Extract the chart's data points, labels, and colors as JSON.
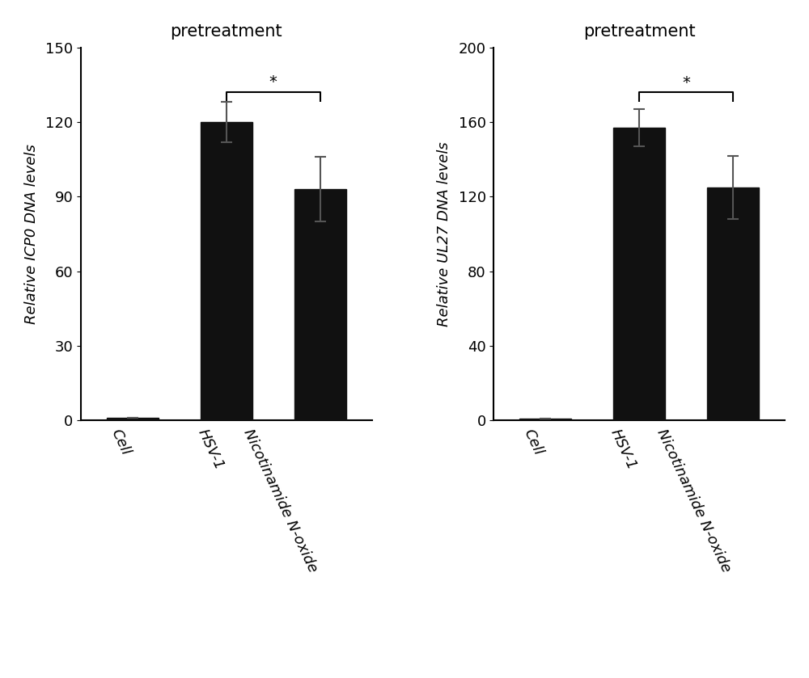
{
  "chart1": {
    "title": "pretreatment",
    "ylabel": "Relative ICP0 DNA levels",
    "categories": [
      "Cell",
      "HSV-1",
      "Nicotinamide N-oxide"
    ],
    "values": [
      1,
      120,
      93
    ],
    "errors": [
      0,
      8,
      13
    ],
    "ylim": [
      0,
      150
    ],
    "yticks": [
      0,
      30,
      60,
      90,
      120,
      150
    ],
    "bar_color": "#111111",
    "bar_width": 0.55,
    "sig_bar_x1": 1,
    "sig_bar_x2": 2,
    "sig_bar_y": 132,
    "sig_bar_drop": 4,
    "sig_star": "*"
  },
  "chart2": {
    "title": "pretreatment",
    "ylabel": "Relative UL27 DNA levels",
    "categories": [
      "Cell",
      "HSV-1",
      "Nicotinamide N-oxide"
    ],
    "values": [
      1,
      157,
      125
    ],
    "errors": [
      0,
      10,
      17
    ],
    "ylim": [
      0,
      200
    ],
    "yticks": [
      0,
      40,
      80,
      120,
      160,
      200
    ],
    "bar_color": "#111111",
    "bar_width": 0.55,
    "sig_bar_x1": 1,
    "sig_bar_x2": 2,
    "sig_bar_y": 176,
    "sig_bar_drop": 5,
    "sig_star": "*"
  },
  "background_color": "#ffffff",
  "title_fontsize": 15,
  "ylabel_fontsize": 13,
  "tick_fontsize": 13,
  "xtick_fontsize": 13,
  "xtick_rotation": -65
}
